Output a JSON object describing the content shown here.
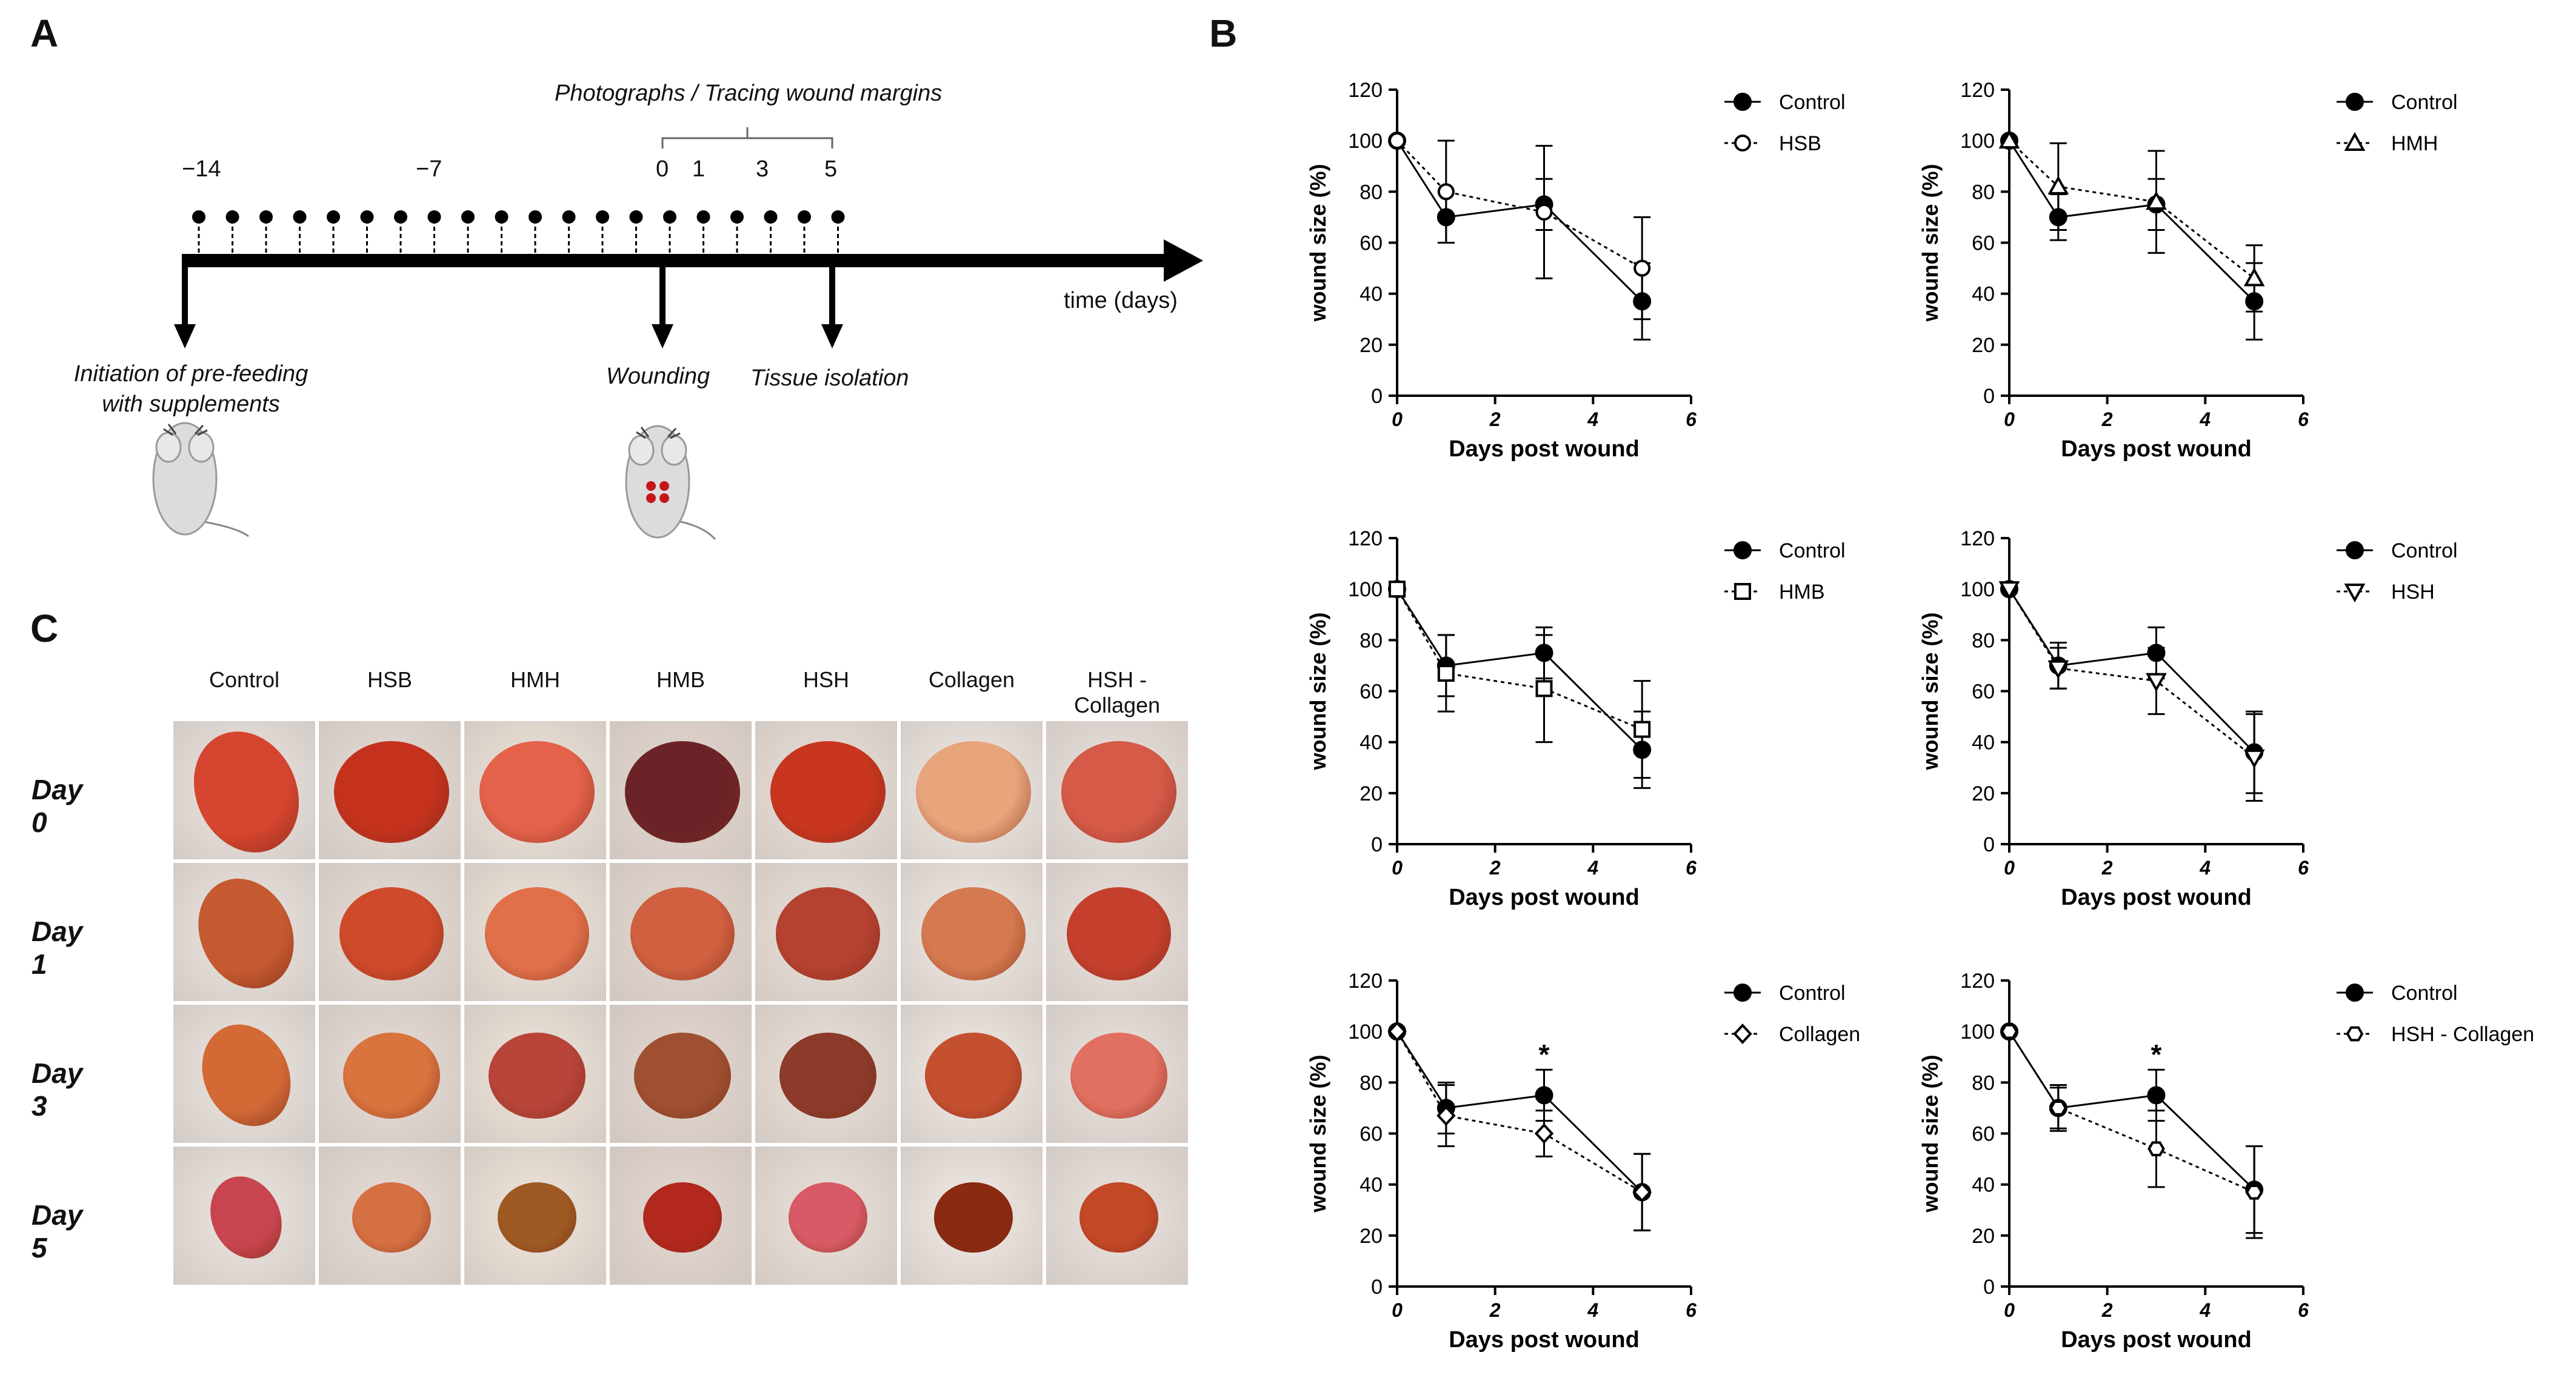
{
  "panels": {
    "a": "A",
    "b": "B",
    "c": "C"
  },
  "timeline": {
    "photo_label": "Photographs / Tracing wound margins",
    "ticks": {
      "m14": "−14",
      "m7": "−7",
      "d0": "0",
      "d1": "1",
      "d3": "3",
      "d5": "5"
    },
    "axis_label": "time (days)",
    "event_prefeed": [
      "Initiation of pre-feeding",
      "with supplements"
    ],
    "event_wounding": "Wounding",
    "event_isolation": "Tissue isolation"
  },
  "photo_grid": {
    "columns": [
      "Control",
      "HSB",
      "HMH",
      "HMB",
      "HSH",
      "Collagen",
      "HSH - Collagen"
    ],
    "rows": [
      "Day 0",
      "Day 1",
      "Day 3",
      "Day 5"
    ]
  },
  "colors": {
    "marker": "#111111",
    "background": "#ffffff",
    "wound_red": "#c23a2a",
    "skin": "#e9e2de"
  },
  "chart_data": [
    {
      "type": "line",
      "xlabel": "Days post wound",
      "ylabel": "wound size (%)",
      "xlim": [
        0,
        6
      ],
      "ylim": [
        0,
        120
      ],
      "x_ticks": [
        "0",
        "2",
        "4",
        "6"
      ],
      "y_ticks": [
        "0",
        "20",
        "40",
        "60",
        "80",
        "100",
        "120"
      ],
      "legend_position": "top-right",
      "series": [
        {
          "name": "Control",
          "marker": "filled-circle",
          "line": "solid",
          "x": [
            0,
            1,
            3,
            5
          ],
          "y": [
            100,
            70,
            75,
            37
          ],
          "err": [
            0,
            10,
            10,
            15
          ]
        },
        {
          "name": "HSB",
          "marker": "open-circle",
          "line": "dotted",
          "x": [
            0,
            1,
            3,
            5
          ],
          "y": [
            100,
            80,
            72,
            50
          ],
          "err": [
            0,
            20,
            26,
            20
          ]
        }
      ],
      "annotations": []
    },
    {
      "type": "line",
      "xlabel": "Days post wound",
      "ylabel": "wound size (%)",
      "xlim": [
        0,
        6
      ],
      "ylim": [
        0,
        120
      ],
      "x_ticks": [
        "0",
        "2",
        "4",
        "6"
      ],
      "y_ticks": [
        "0",
        "20",
        "40",
        "60",
        "80",
        "100",
        "120"
      ],
      "legend_position": "top-right",
      "series": [
        {
          "name": "Control",
          "marker": "filled-circle",
          "line": "solid",
          "x": [
            0,
            1,
            3,
            5
          ],
          "y": [
            100,
            70,
            75,
            37
          ],
          "err": [
            0,
            9,
            10,
            15
          ]
        },
        {
          "name": "HMH",
          "marker": "open-triangle-up",
          "line": "dotted",
          "x": [
            0,
            1,
            3,
            5
          ],
          "y": [
            100,
            82,
            76,
            46
          ],
          "err": [
            0,
            17,
            20,
            13
          ]
        }
      ],
      "annotations": []
    },
    {
      "type": "line",
      "xlabel": "Days post wound",
      "ylabel": "wound size (%)",
      "xlim": [
        0,
        6
      ],
      "ylim": [
        0,
        120
      ],
      "x_ticks": [
        "0",
        "2",
        "4",
        "6"
      ],
      "y_ticks": [
        "0",
        "20",
        "40",
        "60",
        "80",
        "100",
        "120"
      ],
      "legend_position": "top-right",
      "series": [
        {
          "name": "Control",
          "marker": "filled-circle",
          "line": "solid",
          "x": [
            0,
            1,
            3,
            5
          ],
          "y": [
            100,
            70,
            75,
            37
          ],
          "err": [
            0,
            12,
            10,
            15
          ]
        },
        {
          "name": "HMB",
          "marker": "open-square",
          "line": "dotted",
          "x": [
            0,
            1,
            3,
            5
          ],
          "y": [
            100,
            67,
            61,
            45
          ],
          "err": [
            0,
            15,
            21,
            19
          ]
        }
      ],
      "annotations": []
    },
    {
      "type": "line",
      "xlabel": "Days post wound",
      "ylabel": "wound size (%)",
      "xlim": [
        0,
        6
      ],
      "ylim": [
        0,
        120
      ],
      "x_ticks": [
        "0",
        "2",
        "4",
        "6"
      ],
      "y_ticks": [
        "0",
        "20",
        "40",
        "60",
        "80",
        "100",
        "120"
      ],
      "legend_position": "top-right",
      "series": [
        {
          "name": "Control",
          "marker": "filled-circle",
          "line": "solid",
          "x": [
            0,
            1,
            3,
            5
          ],
          "y": [
            100,
            70,
            75,
            36
          ],
          "err": [
            0,
            9,
            10,
            16
          ]
        },
        {
          "name": "HSH",
          "marker": "open-triangle-down",
          "line": "dotted",
          "x": [
            0,
            1,
            3,
            5
          ],
          "y": [
            100,
            69,
            64,
            34
          ],
          "err": [
            0,
            8,
            13,
            17
          ]
        }
      ],
      "annotations": []
    },
    {
      "type": "line",
      "xlabel": "Days post wound",
      "ylabel": "wound size (%)",
      "xlim": [
        0,
        6
      ],
      "ylim": [
        0,
        120
      ],
      "x_ticks": [
        "0",
        "2",
        "4",
        "6"
      ],
      "y_ticks": [
        "0",
        "20",
        "40",
        "60",
        "80",
        "100",
        "120"
      ],
      "legend_position": "top-right",
      "series": [
        {
          "name": "Control",
          "marker": "filled-circle",
          "line": "solid",
          "x": [
            0,
            1,
            3,
            5
          ],
          "y": [
            100,
            70,
            75,
            37
          ],
          "err": [
            0,
            10,
            10,
            15
          ]
        },
        {
          "name": "Collagen",
          "marker": "open-diamond",
          "line": "dotted",
          "x": [
            0,
            1,
            3,
            5
          ],
          "y": [
            100,
            67,
            60,
            37
          ],
          "err": [
            0,
            12,
            9,
            15
          ]
        }
      ],
      "annotations": [
        {
          "x": 3,
          "y": 92,
          "text": "*"
        }
      ]
    },
    {
      "type": "line",
      "xlabel": "Days post wound",
      "ylabel": "wound size (%)",
      "xlim": [
        0,
        6
      ],
      "ylim": [
        0,
        120
      ],
      "x_ticks": [
        "0",
        "2",
        "4",
        "6"
      ],
      "y_ticks": [
        "0",
        "20",
        "40",
        "60",
        "80",
        "100",
        "120"
      ],
      "legend_position": "top-right",
      "series": [
        {
          "name": "Control",
          "marker": "filled-circle",
          "line": "solid",
          "x": [
            0,
            1,
            3,
            5
          ],
          "y": [
            100,
            70,
            75,
            38
          ],
          "err": [
            0,
            9,
            10,
            17
          ]
        },
        {
          "name": "HSH - Collagen",
          "marker": "open-hexagon",
          "line": "dotted",
          "x": [
            0,
            1,
            3,
            5
          ],
          "y": [
            100,
            70,
            54,
            37
          ],
          "err": [
            0,
            8,
            15,
            18
          ]
        }
      ],
      "annotations": [
        {
          "x": 3,
          "y": 92,
          "text": "*"
        }
      ]
    }
  ]
}
